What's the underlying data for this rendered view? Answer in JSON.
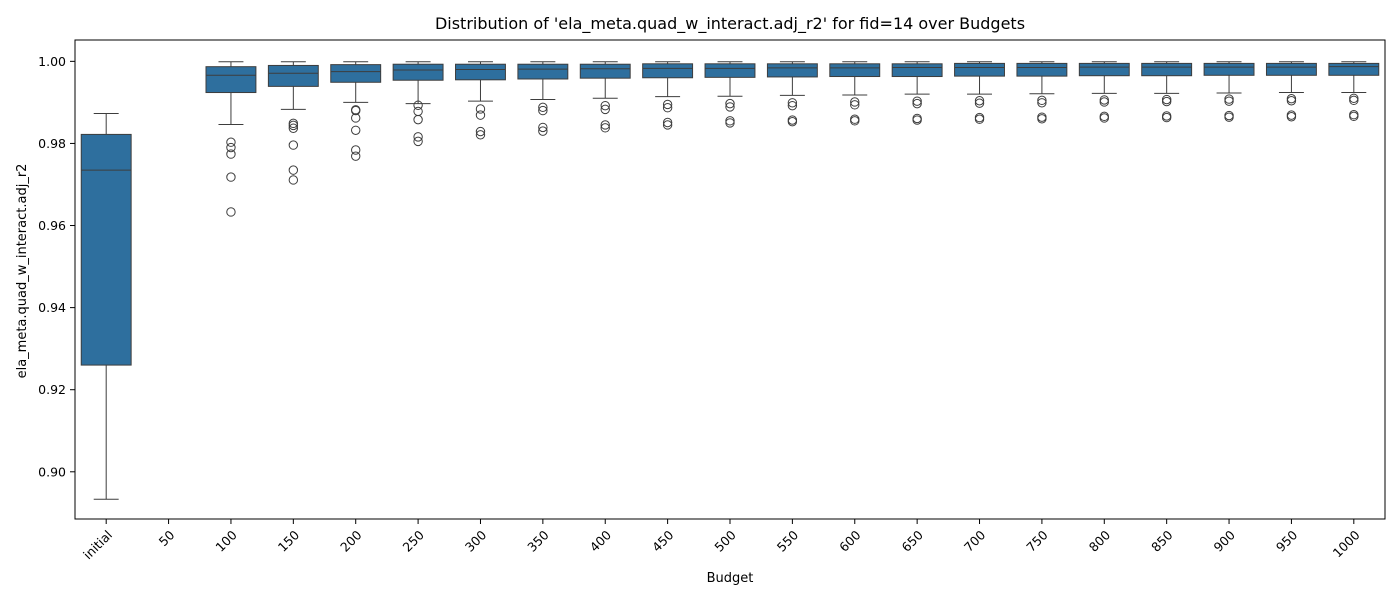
{
  "chart_data": {
    "type": "box",
    "title": "Distribution of 'ela_meta.quad_w_interact.adj_r2' for fid=14 over Budgets",
    "xlabel": "Budget",
    "ylabel": "ela_meta.quad_w_interact.adj_r2",
    "ylim": [
      0.8885,
      1.0052
    ],
    "yticks": [
      0.9,
      0.92,
      0.94,
      0.96,
      0.98,
      1.0
    ],
    "ytick_labels": [
      "0.90",
      "0.92",
      "0.94",
      "0.96",
      "0.98",
      "1.00"
    ],
    "grid": false,
    "color": "#2e6f9e",
    "categories": [
      "initial",
      "50",
      "100",
      "150",
      "200",
      "250",
      "300",
      "350",
      "400",
      "450",
      "500",
      "550",
      "600",
      "650",
      "700",
      "750",
      "800",
      "850",
      "900",
      "950",
      "1000"
    ],
    "boxes": [
      {
        "whislo": 0.8933,
        "q1": 0.926,
        "med": 0.9735,
        "q3": 0.9822,
        "whishi": 0.9873,
        "fliers": []
      },
      null,
      {
        "whislo": 0.9846,
        "q1": 0.9924,
        "med": 0.9966,
        "q3": 0.9987,
        "whishi": 0.9999,
        "fliers": [
          0.9803,
          0.979,
          0.9774,
          0.9718,
          0.9633
        ]
      },
      {
        "whislo": 0.9883,
        "q1": 0.9939,
        "med": 0.9971,
        "q3": 0.999,
        "whishi": 0.9999,
        "fliers": [
          0.9849,
          0.9844,
          0.9837,
          0.9796,
          0.9735,
          0.9711
        ]
      },
      {
        "whislo": 0.99,
        "q1": 0.9949,
        "med": 0.9975,
        "q3": 0.9992,
        "whishi": 0.9999,
        "fliers": [
          0.9882,
          0.988,
          0.9862,
          0.9832,
          0.9784,
          0.9769
        ]
      },
      {
        "whislo": 0.9897,
        "q1": 0.9954,
        "med": 0.9979,
        "q3": 0.9993,
        "whishi": 0.9999,
        "fliers": [
          0.9893,
          0.9878,
          0.9858,
          0.9816,
          0.9805
        ]
      },
      {
        "whislo": 0.9903,
        "q1": 0.9955,
        "med": 0.998,
        "q3": 0.9993,
        "whishi": 0.9999,
        "fliers": [
          0.9884,
          0.9869,
          0.9829,
          0.9821
        ]
      },
      {
        "whislo": 0.9907,
        "q1": 0.9957,
        "med": 0.9981,
        "q3": 0.9993,
        "whishi": 0.9999,
        "fliers": [
          0.9888,
          0.988,
          0.9839,
          0.983
        ]
      },
      {
        "whislo": 0.991,
        "q1": 0.9959,
        "med": 0.9982,
        "q3": 0.9993,
        "whishi": 0.9999,
        "fliers": [
          0.9892,
          0.9883,
          0.9845,
          0.9838
        ]
      },
      {
        "whislo": 0.9914,
        "q1": 0.996,
        "med": 0.9983,
        "q3": 0.9994,
        "whishi": 0.9999,
        "fliers": [
          0.9895,
          0.9887,
          0.9851,
          0.9845
        ]
      },
      {
        "whislo": 0.9915,
        "q1": 0.9961,
        "med": 0.9983,
        "q3": 0.9994,
        "whishi": 0.9999,
        "fliers": [
          0.9897,
          0.9889,
          0.9855,
          0.985
        ]
      },
      {
        "whislo": 0.9917,
        "q1": 0.9962,
        "med": 0.9984,
        "q3": 0.9994,
        "whishi": 0.9999,
        "fliers": [
          0.9899,
          0.9892,
          0.9857,
          0.9853
        ]
      },
      {
        "whislo": 0.9918,
        "q1": 0.9963,
        "med": 0.9984,
        "q3": 0.9994,
        "whishi": 0.9999,
        "fliers": [
          0.9901,
          0.9894,
          0.9859,
          0.9855
        ]
      },
      {
        "whislo": 0.992,
        "q1": 0.9963,
        "med": 0.9985,
        "q3": 0.9994,
        "whishi": 0.9999,
        "fliers": [
          0.9903,
          0.9897,
          0.9861,
          0.9857
        ]
      },
      {
        "whislo": 0.992,
        "q1": 0.9964,
        "med": 0.9985,
        "q3": 0.9995,
        "whishi": 0.9999,
        "fliers": [
          0.9904,
          0.9898,
          0.9863,
          0.9859
        ]
      },
      {
        "whislo": 0.9921,
        "q1": 0.9964,
        "med": 0.9985,
        "q3": 0.9995,
        "whishi": 0.9999,
        "fliers": [
          0.9905,
          0.9899,
          0.9864,
          0.986
        ]
      },
      {
        "whislo": 0.9922,
        "q1": 0.9965,
        "med": 0.9986,
        "q3": 0.9995,
        "whishi": 0.9999,
        "fliers": [
          0.9906,
          0.9901,
          0.9866,
          0.9862
        ]
      },
      {
        "whislo": 0.9922,
        "q1": 0.9965,
        "med": 0.9986,
        "q3": 0.9995,
        "whishi": 0.9999,
        "fliers": [
          0.9907,
          0.9902,
          0.9867,
          0.9863
        ]
      },
      {
        "whislo": 0.9923,
        "q1": 0.9966,
        "med": 0.9986,
        "q3": 0.9995,
        "whishi": 0.9999,
        "fliers": [
          0.9908,
          0.9903,
          0.9868,
          0.9864
        ]
      },
      {
        "whislo": 0.9924,
        "q1": 0.9966,
        "med": 0.9986,
        "q3": 0.9995,
        "whishi": 0.9999,
        "fliers": [
          0.9909,
          0.9904,
          0.9869,
          0.9865
        ]
      },
      {
        "whislo": 0.9924,
        "q1": 0.9966,
        "med": 0.9987,
        "q3": 0.9995,
        "whishi": 0.9999,
        "fliers": [
          0.991,
          0.9905,
          0.987,
          0.9866
        ]
      }
    ]
  }
}
